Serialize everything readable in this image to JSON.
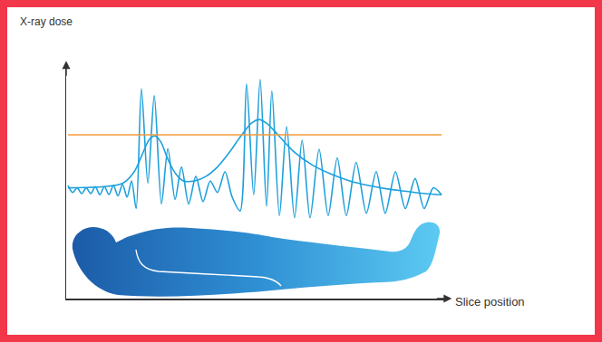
{
  "chart_data": {
    "type": "line",
    "x_label": "Slice position",
    "y_label": "X-ray dose",
    "xlim": [
      0,
      100
    ],
    "ylim": [
      0,
      100
    ],
    "xticks": [],
    "yticks": [],
    "tick_labels": false,
    "grid": false,
    "series": [
      {
        "color": "#1ea0db",
        "line_style": "spline",
        "x": [
          0.5,
          1.7,
          2.9,
          4.1,
          5.3,
          6.5,
          7.7,
          8.9,
          10.1,
          11.3,
          12.5,
          13.7,
          14.9,
          16.1,
          17.3,
          18.5,
          19.9,
          21.6,
          23.3,
          25.2,
          26.9,
          28.8,
          30.5,
          32.4,
          34.3,
          36.2,
          38.1,
          40.0,
          42.0,
          43.9,
          46.0,
          47.7,
          49.6,
          51.3,
          53.0,
          54.4,
          56.4,
          58.3,
          60.4,
          62.4,
          64.5,
          66.9,
          69.3,
          71.7,
          74.1,
          76.7,
          79.4,
          82.0,
          84.4,
          87.1,
          89.7,
          92.3,
          94.7,
          97.1,
          99.3
        ],
        "values": [
          49,
          46,
          48,
          45.5,
          48,
          45.5,
          48.5,
          45,
          48.5,
          45,
          49,
          44.5,
          49.5,
          44,
          51,
          39,
          91,
          50,
          88,
          41,
          65,
          43,
          57,
          41,
          53,
          42,
          51,
          46,
          55,
          44,
          38,
          93,
          45,
          95,
          40,
          90,
          36,
          74.5,
          35,
          68.6,
          35,
          64.7,
          36,
          61,
          36,
          59,
          37,
          55,
          37,
          55,
          39,
          52,
          39,
          48,
          45
        ]
      },
      {
        "color": "#1ea0db",
        "line_style": "spline",
        "x": [
          0.5,
          10,
          15,
          18,
          20,
          22,
          23.5,
          25,
          27,
          29,
          31,
          34,
          37,
          40,
          43,
          46,
          49,
          51,
          53,
          56,
          60,
          65,
          70,
          75,
          80,
          85,
          90,
          95,
          99.3
        ],
        "values": [
          48,
          48.5,
          50,
          55,
          62,
          69,
          70.5,
          68,
          60,
          54,
          51,
          51,
          53,
          57,
          63,
          70,
          76,
          77.6,
          76,
          71,
          64,
          58,
          54,
          51,
          49,
          47.5,
          46.5,
          45.5,
          45
        ]
      },
      {
        "color": "#f39a3c",
        "line_style": "solid",
        "x": [
          0.5,
          99.3
        ],
        "values": [
          71,
          71
        ]
      }
    ]
  }
}
